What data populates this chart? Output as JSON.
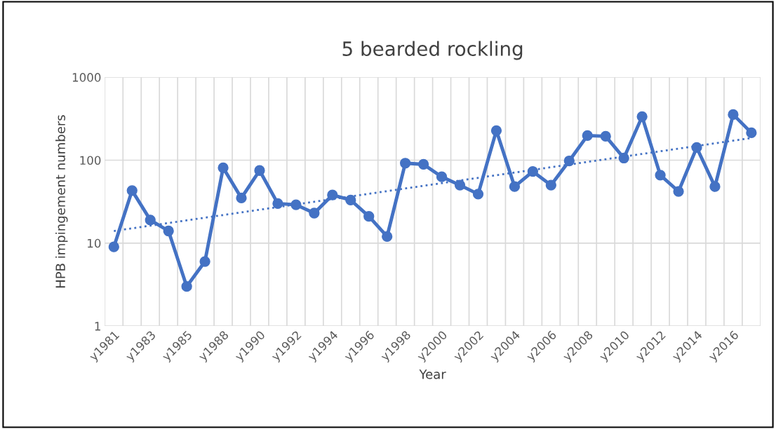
{
  "chart_data": {
    "type": "line",
    "title": "5 bearded rockling",
    "xlabel": "Year",
    "ylabel": "HPB impingement numbers",
    "categories": [
      "y1981",
      null,
      "y1983",
      null,
      "y1985",
      null,
      "y1988",
      null,
      "y1990",
      null,
      "y1992",
      null,
      "y1994",
      null,
      "y1996",
      null,
      "y1998",
      null,
      "y2000",
      null,
      "y2002",
      null,
      "y2004",
      null,
      "y2006",
      null,
      "y2008",
      null,
      "y2010",
      null,
      "y2012",
      null,
      "y2014",
      null,
      "y2016",
      null
    ],
    "series": [
      {
        "color": "#4472c4",
        "marker": "circle",
        "line_style": "solid",
        "values": [
          9,
          43,
          19,
          14,
          3,
          6,
          81,
          35,
          75,
          30,
          29,
          23,
          38,
          33,
          21,
          12,
          92,
          89,
          63,
          50,
          39,
          227,
          48,
          73,
          50,
          98,
          198,
          194,
          106,
          335,
          66,
          42,
          142,
          48,
          355,
          214
        ]
      },
      {
        "color": "#4472c4",
        "marker": "none",
        "line_style": "dotted",
        "values": [
          14,
          null,
          null,
          null,
          null,
          null,
          null,
          null,
          null,
          null,
          null,
          null,
          null,
          null,
          null,
          null,
          null,
          null,
          null,
          null,
          null,
          null,
          null,
          null,
          null,
          null,
          null,
          null,
          null,
          null,
          null,
          null,
          null,
          null,
          null,
          185
        ]
      }
    ],
    "log": true,
    "ylim": [
      1,
      1000
    ],
    "yticks": [
      1,
      10,
      100,
      1000
    ],
    "grid": true
  }
}
